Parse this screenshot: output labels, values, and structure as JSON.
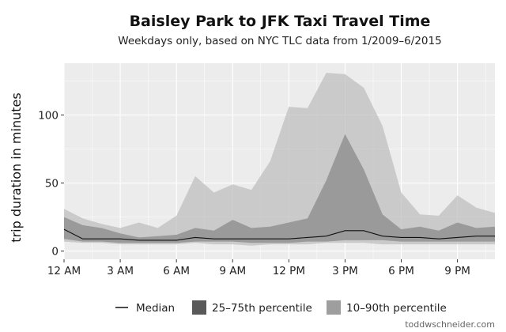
{
  "chart_data": {
    "type": "area",
    "title": "Baisley Park to JFK Taxi Travel Time",
    "subtitle": "Weekdays only, based on NYC TLC data from 1/2009–6/2015",
    "xlabel": "",
    "ylabel": "trip duration in minutes",
    "caption": "toddwschneider.com",
    "x": [
      0,
      1,
      2,
      3,
      4,
      5,
      6,
      7,
      8,
      9,
      10,
      11,
      12,
      13,
      14,
      15,
      16,
      17,
      18,
      19,
      20,
      21,
      22,
      23
    ],
    "x_ticks": [
      0,
      3,
      6,
      9,
      12,
      15,
      18,
      21
    ],
    "x_tick_labels": [
      "12 AM",
      "3 AM",
      "6 AM",
      "9 AM",
      "12 PM",
      "3 PM",
      "6 PM",
      "9 PM"
    ],
    "y_ticks": [
      0,
      50,
      100
    ],
    "y_tick_labels": [
      "0",
      "50",
      "100"
    ],
    "xlim": [
      0,
      23
    ],
    "ylim": [
      -6,
      138
    ],
    "grid": true,
    "legend_position": "bottom",
    "series": [
      {
        "name": "10–90th percentile",
        "kind": "band",
        "color": "#bfbfbf",
        "low": [
          7,
          6,
          6,
          5,
          5,
          5,
          5,
          6,
          5,
          5,
          4,
          5,
          5,
          5,
          6,
          6,
          6,
          5,
          5,
          5,
          5,
          5,
          5,
          5
        ],
        "high": [
          31,
          24,
          20,
          17,
          21,
          17,
          26,
          55,
          43,
          49,
          45,
          66,
          106,
          105,
          131,
          130,
          120,
          92,
          43,
          27,
          26,
          41,
          32,
          28
        ]
      },
      {
        "name": "25–75th percentile",
        "kind": "band",
        "color": "#8a8a8a",
        "low": [
          9,
          7,
          7,
          6,
          6,
          6,
          6,
          7,
          7,
          7,
          6,
          6,
          6,
          7,
          7,
          8,
          8,
          8,
          7,
          7,
          7,
          7,
          7,
          7
        ],
        "high": [
          25,
          19,
          17,
          13,
          10,
          11,
          12,
          17,
          15,
          23,
          17,
          18,
          21,
          24,
          52,
          86,
          60,
          27,
          16,
          18,
          15,
          21,
          17,
          18
        ]
      },
      {
        "name": "Median",
        "kind": "line",
        "color": "#111111",
        "values": [
          16,
          9,
          9,
          9,
          8,
          8,
          8,
          10,
          9,
          9,
          9,
          9,
          9,
          10,
          11,
          15,
          15,
          11,
          10,
          10,
          9,
          10,
          11,
          11
        ]
      }
    ]
  }
}
